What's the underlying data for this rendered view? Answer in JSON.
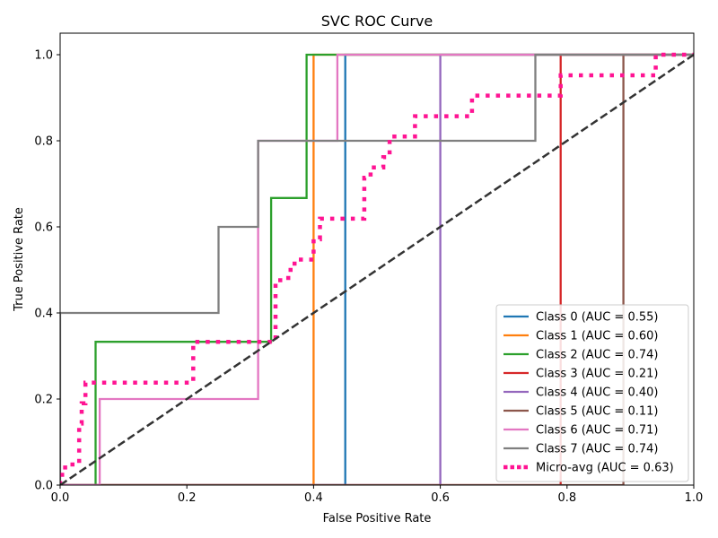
{
  "chart_data": {
    "type": "line",
    "title": "SVC ROC Curve",
    "xlabel": "False Positive Rate",
    "ylabel": "True Positive Rate",
    "xlim": [
      0.0,
      1.0
    ],
    "ylim": [
      0.0,
      1.05
    ],
    "xticks": [
      "0.0",
      "0.2",
      "0.4",
      "0.6",
      "0.8",
      "1.0"
    ],
    "yticks": [
      "0.0",
      "0.2",
      "0.4",
      "0.6",
      "0.8",
      "1.0"
    ],
    "xtick_values": [
      0.0,
      0.2,
      0.4,
      0.6,
      0.8,
      1.0
    ],
    "ytick_values": [
      0.0,
      0.2,
      0.4,
      0.6,
      0.8,
      1.0
    ],
    "legend_position": "lower right",
    "grid": false,
    "series": [
      {
        "name": "Class 0 (AUC = 0.55)",
        "color": "#1f77b4",
        "style": "solid",
        "x": [
          0,
          0.45,
          0.45,
          1.0
        ],
        "y": [
          0,
          0,
          1.0,
          1.0
        ]
      },
      {
        "name": "Class 1 (AUC = 0.60)",
        "color": "#ff7f0e",
        "style": "solid",
        "x": [
          0,
          0.4,
          0.4,
          1.0
        ],
        "y": [
          0,
          0,
          1.0,
          1.0
        ]
      },
      {
        "name": "Class 2 (AUC = 0.74)",
        "color": "#2ca02c",
        "style": "solid",
        "x": [
          0,
          0.056,
          0.056,
          0.333,
          0.333,
          0.389,
          0.389,
          1.0
        ],
        "y": [
          0,
          0,
          0.333,
          0.333,
          0.667,
          0.667,
          1.0,
          1.0
        ]
      },
      {
        "name": "Class 3 (AUC = 0.21)",
        "color": "#d62728",
        "style": "solid",
        "x": [
          0,
          0.79,
          0.79,
          1.0
        ],
        "y": [
          0,
          0,
          1.0,
          1.0
        ]
      },
      {
        "name": "Class 4 (AUC = 0.40)",
        "color": "#9467bd",
        "style": "solid",
        "x": [
          0,
          0.6,
          0.6,
          1.0
        ],
        "y": [
          0,
          0,
          1.0,
          1.0
        ]
      },
      {
        "name": "Class 5 (AUC = 0.11)",
        "color": "#8c564b",
        "style": "solid",
        "x": [
          0,
          0.889,
          0.889,
          1.0
        ],
        "y": [
          0,
          0,
          1.0,
          1.0
        ]
      },
      {
        "name": "Class 6 (AUC = 0.71)",
        "color": "#e377c2",
        "style": "solid",
        "x": [
          0,
          0.0625,
          0.0625,
          0.3125,
          0.3125,
          0.4375,
          0.4375,
          1.0
        ],
        "y": [
          0,
          0,
          0.2,
          0.2,
          0.8,
          0.8,
          1.0,
          1.0
        ]
      },
      {
        "name": "Class 7 (AUC = 0.74)",
        "color": "#7f7f7f",
        "style": "solid",
        "x": [
          0,
          0,
          0.25,
          0.25,
          0.3125,
          0.3125,
          0.75,
          0.75,
          1.0
        ],
        "y": [
          0,
          0.4,
          0.4,
          0.6,
          0.6,
          0.8,
          0.8,
          1.0,
          1.0
        ]
      },
      {
        "name": "Micro-avg (AUC = 0.63)",
        "color": "#ff1493",
        "style": "dotted",
        "x": [
          0,
          0,
          0.008,
          0.008,
          0.03,
          0.03,
          0.034,
          0.034,
          0.04,
          0.04,
          0.21,
          0.21,
          0.34,
          0.34,
          0.36,
          0.36,
          0.37,
          0.37,
          0.4,
          0.4,
          0.41,
          0.41,
          0.48,
          0.48,
          0.49,
          0.49,
          0.51,
          0.51,
          0.52,
          0.52,
          0.56,
          0.56,
          0.65,
          0.65,
          0.79,
          0.79,
          0.94,
          0.94,
          1.0
        ],
        "y": [
          0,
          0.024,
          0.024,
          0.048,
          0.048,
          0.143,
          0.143,
          0.19,
          0.19,
          0.238,
          0.238,
          0.333,
          0.333,
          0.476,
          0.476,
          0.5,
          0.5,
          0.524,
          0.524,
          0.571,
          0.571,
          0.619,
          0.619,
          0.714,
          0.714,
          0.738,
          0.738,
          0.762,
          0.762,
          0.81,
          0.81,
          0.857,
          0.857,
          0.905,
          0.905,
          0.952,
          0.952,
          1.0,
          1.0
        ]
      },
      {
        "name": "",
        "color": "#333333",
        "style": "dashed",
        "x": [
          0,
          1
        ],
        "y": [
          0,
          1
        ]
      }
    ]
  }
}
